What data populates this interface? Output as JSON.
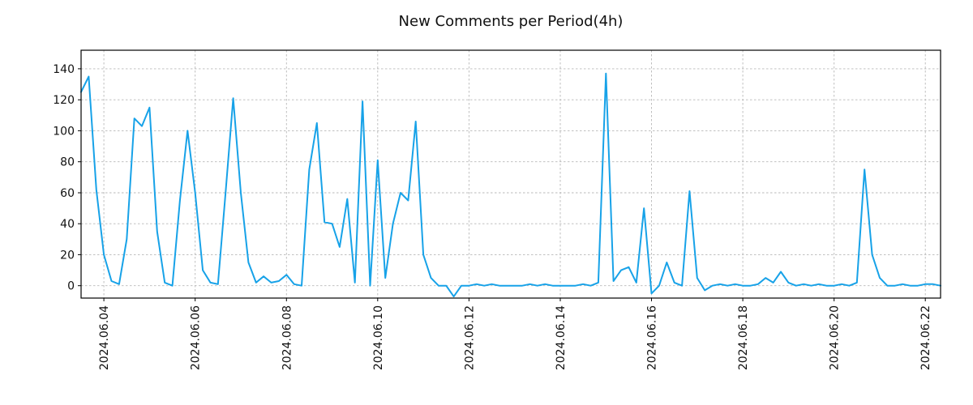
{
  "chart_data": {
    "type": "line",
    "title": "New Comments per Period(4h)",
    "xlabel": "",
    "ylabel": "",
    "series_name": "New Comments",
    "series_color": "#17a2e8",
    "grid": true,
    "legend": false,
    "period": "4h",
    "start": "2024-06-03 12:00",
    "interval_hours": 4,
    "ylim": [
      -8,
      152
    ],
    "yticks": [
      0,
      20,
      40,
      60,
      80,
      100,
      120,
      140
    ],
    "xticks": [
      {
        "label": "2024.06.04",
        "index": 3
      },
      {
        "label": "2024.06.06",
        "index": 15
      },
      {
        "label": "2024.06.08",
        "index": 27
      },
      {
        "label": "2024.06.10",
        "index": 39
      },
      {
        "label": "2024.06.12",
        "index": 51
      },
      {
        "label": "2024.06.14",
        "index": 63
      },
      {
        "label": "2024.06.16",
        "index": 75
      },
      {
        "label": "2024.06.18",
        "index": 87
      },
      {
        "label": "2024.06.20",
        "index": 99
      },
      {
        "label": "2024.06.22",
        "index": 111
      }
    ],
    "values": [
      125,
      135,
      62,
      20,
      3,
      1,
      30,
      108,
      103,
      115,
      35,
      2,
      0,
      55,
      100,
      60,
      10,
      2,
      1,
      60,
      121,
      60,
      15,
      2,
      6,
      2,
      3,
      7,
      1,
      0,
      75,
      105,
      41,
      40,
      25,
      56,
      2,
      119,
      0,
      81,
      5,
      40,
      60,
      55,
      106,
      20,
      5,
      0,
      0,
      -7,
      0,
      0,
      1,
      0,
      1,
      0,
      0,
      0,
      0,
      1,
      0,
      1,
      0,
      0,
      0,
      0,
      1,
      0,
      2,
      137,
      3,
      10,
      12,
      2,
      50,
      -5,
      0,
      15,
      2,
      0,
      61,
      5,
      -3,
      0,
      1,
      0,
      1,
      0,
      0,
      1,
      5,
      2,
      9,
      2,
      0,
      1,
      0,
      1,
      0,
      0,
      1,
      0,
      2,
      75,
      20,
      5,
      0,
      0,
      1,
      0,
      0,
      1,
      1,
      0
    ]
  }
}
